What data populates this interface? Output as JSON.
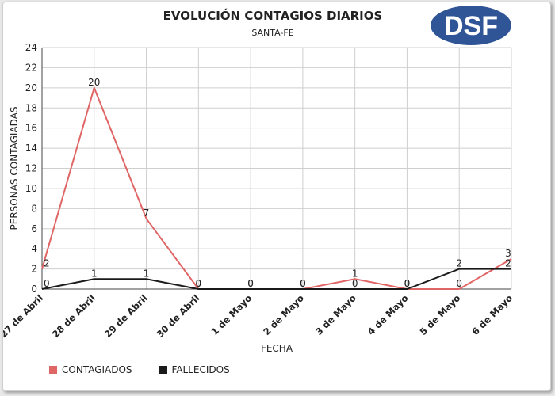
{
  "chart_data": {
    "type": "line",
    "title": "EVOLUCIÓN CONTAGIOS DIARIOS",
    "subtitle": "SANTA-FE",
    "xlabel": "FECHA",
    "ylabel": "PERSONAS CONTAGIADAS",
    "categories": [
      "27 de Abril",
      "28 de Abril",
      "29 de Abril",
      "30 de Abril",
      "1 de Mayo",
      "2 de Mayo",
      "3 de Mayo",
      "4 de Mayo",
      "5 de Mayo",
      "6 de Mayo"
    ],
    "series": [
      {
        "name": "CONTAGIADOS",
        "color": "#e06666",
        "values": [
          2,
          20,
          7,
          0,
          0,
          0,
          1,
          0,
          0,
          3
        ]
      },
      {
        "name": "FALLECIDOS",
        "color": "#1a1a1a",
        "values": [
          0,
          1,
          1,
          0,
          0,
          0,
          0,
          0,
          2,
          2
        ]
      }
    ],
    "ylim": [
      0,
      24
    ],
    "yticks": [
      0,
      2,
      4,
      6,
      8,
      10,
      12,
      14,
      16,
      18,
      20,
      22,
      24
    ],
    "grid": true,
    "legend_position": "bottom-left"
  },
  "logo": {
    "text": "DSF",
    "color": "#2f5597"
  }
}
